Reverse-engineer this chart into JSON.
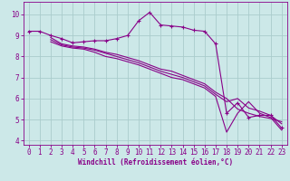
{
  "xlabel": "Windchill (Refroidissement éolien,°C)",
  "bg_color": "#cce8e8",
  "grid_color": "#aacccc",
  "line_color": "#880088",
  "xlim": [
    -0.5,
    23.5
  ],
  "ylim": [
    3.8,
    10.6
  ],
  "yticks": [
    4,
    5,
    6,
    7,
    8,
    9,
    10
  ],
  "xticks": [
    0,
    1,
    2,
    3,
    4,
    5,
    6,
    7,
    8,
    9,
    10,
    11,
    12,
    13,
    14,
    15,
    16,
    17,
    18,
    19,
    20,
    21,
    22,
    23
  ],
  "series1_x": [
    0,
    1,
    2,
    3,
    4,
    5,
    6,
    7,
    8,
    9,
    10,
    11,
    12,
    13,
    14,
    15,
    16,
    17,
    18,
    19,
    20,
    21,
    22,
    23
  ],
  "series1_y": [
    9.2,
    9.2,
    9.0,
    8.85,
    8.65,
    8.7,
    8.75,
    8.75,
    8.85,
    9.0,
    9.7,
    10.1,
    9.5,
    9.45,
    9.4,
    9.25,
    9.2,
    8.6,
    5.3,
    5.8,
    5.1,
    5.2,
    5.2,
    4.6
  ],
  "series2_x": [
    2,
    3,
    4,
    5,
    6,
    7,
    8,
    9,
    10,
    11,
    12,
    13,
    14,
    15,
    16,
    17,
    18,
    19,
    20,
    21,
    22,
    23
  ],
  "series2_y": [
    8.9,
    8.6,
    8.5,
    8.45,
    8.35,
    8.2,
    8.1,
    7.95,
    7.8,
    7.6,
    7.4,
    7.3,
    7.1,
    6.9,
    6.7,
    6.3,
    6.0,
    5.5,
    5.3,
    5.15,
    5.05,
    4.9
  ],
  "series3_x": [
    2,
    3,
    4,
    5,
    6,
    7,
    8,
    9,
    10,
    11,
    12,
    13,
    14,
    15,
    16,
    17,
    18,
    19,
    20,
    21,
    22,
    23
  ],
  "series3_y": [
    8.8,
    8.55,
    8.45,
    8.4,
    8.3,
    8.15,
    8.0,
    7.85,
    7.7,
    7.5,
    7.3,
    7.15,
    7.0,
    6.8,
    6.6,
    6.2,
    5.85,
    6.0,
    5.55,
    5.4,
    5.2,
    4.8
  ],
  "series4_x": [
    2,
    3,
    4,
    5,
    6,
    7,
    8,
    9,
    10,
    11,
    12,
    13,
    14,
    15,
    16,
    17,
    18,
    19,
    20,
    21,
    22,
    23
  ],
  "series4_y": [
    8.7,
    8.5,
    8.4,
    8.35,
    8.2,
    8.0,
    7.9,
    7.75,
    7.6,
    7.4,
    7.2,
    7.0,
    6.9,
    6.7,
    6.5,
    6.1,
    4.4,
    5.3,
    5.85,
    5.3,
    5.1,
    4.5
  ],
  "tick_fontsize": 5.5,
  "xlabel_fontsize": 5.5,
  "linewidth": 0.8,
  "marker_size": 3.0
}
